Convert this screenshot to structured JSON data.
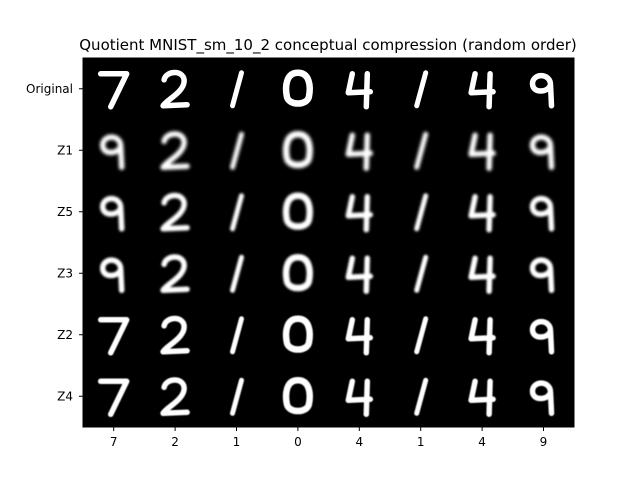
{
  "title": "Quotient MNIST_sm_10_2 conceptual compression (random order)",
  "row_labels": [
    "Original",
    "Z1",
    "Z5",
    "Z3",
    "Z2",
    "Z4"
  ],
  "column_labels": [
    "7",
    "2",
    "1",
    "0",
    "4",
    "1",
    "4",
    "9"
  ],
  "grid": [
    [
      "7",
      "2",
      "1",
      "0",
      "4",
      "1",
      "4",
      "9"
    ],
    [
      "9",
      "2",
      "1",
      "0",
      "4",
      "1",
      "4",
      "9"
    ],
    [
      "9",
      "2",
      "1",
      "0",
      "4",
      "1",
      "4",
      "9"
    ],
    [
      "9",
      "2",
      "1",
      "0",
      "4",
      "1",
      "4",
      "9"
    ],
    [
      "7",
      "2",
      "1",
      "0",
      "4",
      "1",
      "4",
      "9"
    ],
    [
      "7",
      "2",
      "1",
      "0",
      "4",
      "1",
      "4",
      "9"
    ]
  ],
  "row_blur": [
    0.0,
    1.6,
    1.4,
    1.0,
    0.6,
    0.5
  ],
  "colors": {
    "image_background": "#000000",
    "digit": "#ffffff",
    "page": "#ffffff"
  }
}
